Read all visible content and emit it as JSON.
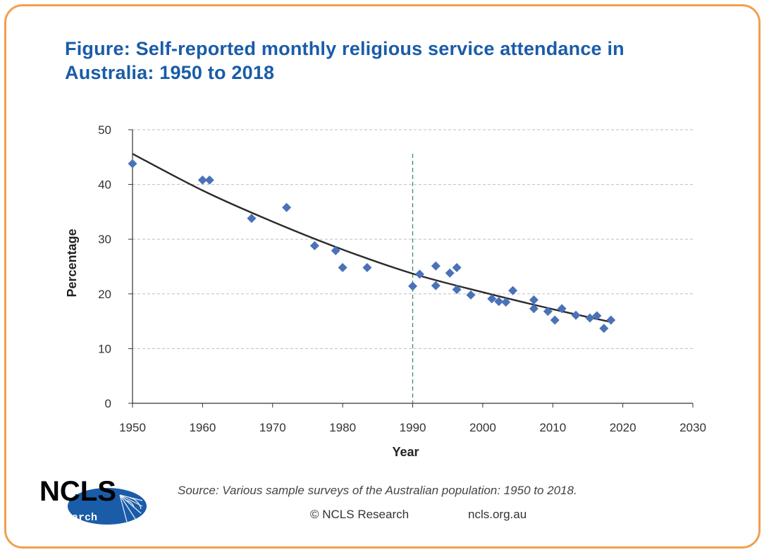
{
  "title": "Figure: Self-reported monthly religious service attendance in Australia: 1950 to 2018",
  "source_text": "Source: Various sample surveys of the Australian population: 1950 to 2018.",
  "credit_text": "© NCLS Research",
  "site_text": "ncls.org.au",
  "logo": {
    "text": "NCLS",
    "subtext": "research",
    "color": "#1a5ca8"
  },
  "colors": {
    "frame": "#f0a050",
    "title": "#1a5ca8",
    "points": "#4a72b8",
    "trend": "#2b2b2b",
    "marker_line": "#2e8b57"
  },
  "chart_data": {
    "type": "scatter",
    "xlabel": "Year",
    "ylabel": "Percentage",
    "xlim": [
      1950,
      2030
    ],
    "ylim": [
      0,
      50
    ],
    "xticks": [
      1950,
      1960,
      1970,
      1980,
      1990,
      2000,
      2010,
      2020,
      2030
    ],
    "yticks": [
      0,
      10,
      20,
      30,
      40,
      50
    ],
    "grid": "horizontal dashed",
    "vertical_marker_x": 1990,
    "points": [
      [
        1950,
        43.8
      ],
      [
        1960,
        40.8
      ],
      [
        1961,
        40.8
      ],
      [
        1967,
        33.8
      ],
      [
        1972,
        35.8
      ],
      [
        1976,
        28.8
      ],
      [
        1979,
        27.9
      ],
      [
        1980,
        24.8
      ],
      [
        1983.5,
        24.8
      ],
      [
        1990,
        21.4
      ],
      [
        1991,
        23.6
      ],
      [
        1993.3,
        21.5
      ],
      [
        1993.3,
        25.1
      ],
      [
        1995.3,
        23.8
      ],
      [
        1996.3,
        24.8
      ],
      [
        1996.3,
        20.8
      ],
      [
        1998.3,
        19.8
      ],
      [
        2001.3,
        19.1
      ],
      [
        2002.3,
        18.6
      ],
      [
        2003.3,
        18.5
      ],
      [
        2004.3,
        20.6
      ],
      [
        2007.3,
        17.3
      ],
      [
        2007.3,
        18.9
      ],
      [
        2009.3,
        16.8
      ],
      [
        2010.3,
        15.2
      ],
      [
        2011.3,
        17.3
      ],
      [
        2013.3,
        16.1
      ],
      [
        2015.3,
        15.6
      ],
      [
        2016.3,
        16.0
      ],
      [
        2017.3,
        13.7
      ],
      [
        2018.3,
        15.2
      ]
    ],
    "trendline": {
      "type": "fitted curve",
      "x": [
        1950,
        1960,
        1970,
        1980,
        1990,
        2000,
        2010,
        2018.5
      ],
      "y": [
        45.6,
        38.9,
        33.2,
        28.1,
        23.7,
        20.3,
        17.2,
        14.8
      ]
    }
  }
}
